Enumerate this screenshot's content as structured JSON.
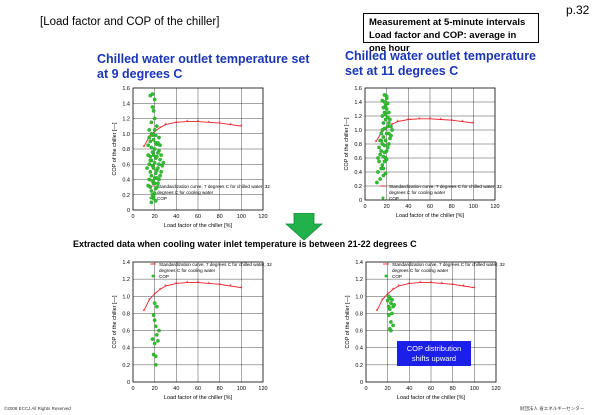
{
  "page_number": "p.32",
  "title": "[Load factor and COP of the chiller]",
  "note_lines": [
    "Measurement at 5-minute intervals",
    "Load factor and COP: average in one hour"
  ],
  "extract_heading": "Extracted data when cooling water inlet temperature is between 21-22 degrees C",
  "callout_lines": [
    "COP distribution",
    "shifts upward"
  ],
  "footer": {
    "copyright": "©2008  ECCJ All Rights Reserved",
    "org": "財団法人 省エネルギーセンター"
  },
  "colors": {
    "heading": "#1a36b8",
    "curve": "#e8202a",
    "points": "#2fbf2f",
    "arrow": "#22b24c",
    "callout": "#1b1fe8"
  },
  "chart_data": [
    {
      "type": "scatter",
      "panel": "top-left",
      "heading": [
        "Chilled water outlet temperature set",
        "at 9 degrees C"
      ],
      "xlabel": "Load factor of the chiller [%]",
      "ylabel": "COP of the chiller [—]",
      "xlim": [
        0,
        120
      ],
      "ylim": [
        0,
        1.6
      ],
      "xticks": [
        0,
        20,
        40,
        60,
        80,
        100,
        120
      ],
      "yticks": [
        0,
        0.2,
        0.4,
        0.6,
        0.8,
        1.0,
        1.2,
        1.4,
        1.6
      ],
      "grid": true,
      "legend": {
        "position": "inside-right",
        "entries": [
          "Standardization curve, 7 degrees C for chilled water, 32",
          "degrees C for cooling water",
          "COP"
        ]
      },
      "series": [
        {
          "name": "Standardization curve, 7 degrees C for chilled water, 32 degrees C for cooling water",
          "x": [
            10,
            15,
            20,
            25,
            30,
            40,
            50,
            60,
            70,
            80,
            90,
            100
          ],
          "y": [
            0.83,
            0.96,
            1.03,
            1.08,
            1.12,
            1.15,
            1.16,
            1.16,
            1.15,
            1.14,
            1.12,
            1.1
          ]
        },
        {
          "name": "COP",
          "x": [
            13,
            14,
            14,
            15,
            15,
            15,
            16,
            16,
            16,
            16,
            17,
            17,
            17,
            17,
            17,
            18,
            18,
            18,
            18,
            18,
            19,
            19,
            19,
            19,
            19,
            20,
            20,
            20,
            20,
            20,
            21,
            21,
            21,
            21,
            22,
            22,
            22,
            22,
            23,
            23,
            23,
            24,
            24,
            24,
            25,
            25,
            26,
            26,
            27,
            28,
            16,
            18,
            20,
            22,
            24,
            15,
            17,
            19,
            21,
            23,
            14,
            18,
            20,
            25,
            17,
            19,
            21,
            16,
            22,
            20
          ],
          "y": [
            0.55,
            0.72,
            0.85,
            0.4,
            0.6,
            0.95,
            0.3,
            0.5,
            0.7,
            0.9,
            0.25,
            0.45,
            0.65,
            0.82,
            1.0,
            0.2,
            0.38,
            0.58,
            0.76,
            0.98,
            0.18,
            0.35,
            0.55,
            0.72,
            0.92,
            0.22,
            0.42,
            0.62,
            0.8,
            1.05,
            0.28,
            0.48,
            0.68,
            0.88,
            0.3,
            0.52,
            0.7,
            0.86,
            0.35,
            0.55,
            0.75,
            0.4,
            0.6,
            0.78,
            0.45,
            0.66,
            0.5,
            0.72,
            0.58,
            0.62,
            1.5,
            1.35,
            1.2,
            1.1,
            0.95,
            1.05,
            1.15,
            1.3,
            0.98,
            0.88,
            0.32,
            1.52,
            1.45,
            0.85,
            0.1,
            0.15,
            0.12,
            0.65,
            0.42,
            0.35
          ]
        }
      ]
    },
    {
      "type": "scatter",
      "panel": "top-right",
      "heading": [
        "Chilled water outlet temperature",
        "set at 11 degrees C"
      ],
      "xlabel": "Load factor of the chiller [%]",
      "ylabel": "COP of the chiller [—]",
      "xlim": [
        0,
        120
      ],
      "ylim": [
        0,
        1.6
      ],
      "xticks": [
        0,
        20,
        40,
        60,
        80,
        100,
        120
      ],
      "yticks": [
        0,
        0.2,
        0.4,
        0.6,
        0.8,
        1.0,
        1.2,
        1.4,
        1.6
      ],
      "grid": true,
      "legend": {
        "position": "inside-right",
        "entries": [
          "Standardization curve, 7 degrees C for chilled water, 32",
          "degrees C for cooling water",
          "COP"
        ]
      },
      "series": [
        {
          "name": "Standardization curve, 7 degrees C for chilled water, 32 degrees C for cooling water",
          "x": [
            10,
            15,
            20,
            25,
            30,
            40,
            50,
            60,
            70,
            80,
            90,
            100
          ],
          "y": [
            0.83,
            0.96,
            1.03,
            1.08,
            1.12,
            1.15,
            1.16,
            1.16,
            1.15,
            1.14,
            1.12,
            1.1
          ]
        },
        {
          "name": "COP",
          "x": [
            11,
            12,
            12,
            13,
            13,
            14,
            14,
            14,
            15,
            15,
            15,
            16,
            16,
            16,
            16,
            17,
            17,
            17,
            17,
            18,
            18,
            18,
            18,
            18,
            19,
            19,
            19,
            19,
            20,
            20,
            20,
            20,
            21,
            21,
            21,
            22,
            22,
            22,
            23,
            23,
            24,
            24,
            25,
            16,
            18,
            20,
            17,
            19,
            21,
            15,
            18,
            20,
            22,
            17,
            19
          ],
          "y": [
            0.25,
            0.4,
            0.6,
            0.55,
            0.75,
            0.3,
            0.65,
            0.85,
            0.45,
            0.7,
            0.95,
            0.5,
            0.8,
            1.0,
            1.2,
            0.35,
            0.62,
            0.9,
            1.1,
            0.55,
            0.78,
            1.02,
            1.25,
            1.4,
            0.6,
            0.85,
            1.15,
            1.35,
            0.7,
            0.95,
            1.3,
            1.45,
            0.75,
            1.05,
            1.38,
            0.8,
            1.1,
            1.25,
            0.88,
            1.15,
            0.92,
            1.05,
            1.0,
            1.42,
            1.5,
            1.48,
            1.32,
            1.22,
            1.18,
            0.85,
            0.68,
            0.58,
            0.95,
            0.45,
            0.38
          ]
        }
      ]
    },
    {
      "type": "scatter",
      "panel": "bottom-left",
      "xlabel": "Load factor of the chiller [%]",
      "ylabel": "COP of the chiller [—]",
      "xlim": [
        0,
        120
      ],
      "ylim": [
        0,
        1.4
      ],
      "xticks": [
        0,
        20,
        40,
        60,
        80,
        100,
        120
      ],
      "yticks": [
        0,
        0.2,
        0.4,
        0.6,
        0.8,
        1.0,
        1.2,
        1.4
      ],
      "grid": true,
      "legend": {
        "position": "inside-top",
        "entries": [
          "Standardization curve, 7 degrees C for chilled water, 32",
          "degrees C for cooling water",
          "COP"
        ]
      },
      "series": [
        {
          "name": "Standardization curve, 7 degrees C for chilled water, 32 degrees C for cooling water",
          "x": [
            10,
            15,
            20,
            25,
            30,
            40,
            50,
            60,
            70,
            80,
            90,
            100
          ],
          "y": [
            0.83,
            0.96,
            1.03,
            1.08,
            1.12,
            1.15,
            1.16,
            1.16,
            1.15,
            1.14,
            1.12,
            1.1
          ]
        },
        {
          "name": "COP",
          "x": [
            18,
            19,
            19,
            20,
            20,
            21,
            21,
            22,
            22,
            23,
            24,
            20,
            21
          ],
          "y": [
            0.5,
            0.32,
            0.78,
            0.45,
            0.92,
            0.3,
            0.65,
            0.55,
            0.88,
            0.48,
            0.6,
            0.72,
            0.2
          ]
        }
      ]
    },
    {
      "type": "scatter",
      "panel": "bottom-right",
      "xlabel": "Load factor of the chiller [%]",
      "ylabel": "COP of the chiller [—]",
      "xlim": [
        0,
        120
      ],
      "ylim": [
        0,
        1.4
      ],
      "xticks": [
        0,
        20,
        40,
        60,
        80,
        100,
        120
      ],
      "yticks": [
        0,
        0.2,
        0.4,
        0.6,
        0.8,
        1.0,
        1.2,
        1.4
      ],
      "grid": true,
      "legend": {
        "position": "inside-top",
        "entries": [
          "Standardization curve, 7 degrees C for chilled water, 32",
          "degrees C for cooling water",
          "COP"
        ]
      },
      "series": [
        {
          "name": "Standardization curve, 7 degrees C for chilled water, 32 degrees C for cooling water",
          "x": [
            10,
            15,
            20,
            25,
            30,
            40,
            50,
            60,
            70,
            80,
            90,
            100
          ],
          "y": [
            0.83,
            0.96,
            1.03,
            1.08,
            1.12,
            1.15,
            1.16,
            1.16,
            1.15,
            1.14,
            1.12,
            1.1
          ]
        },
        {
          "name": "COP",
          "x": [
            20,
            21,
            21,
            22,
            22,
            22,
            23,
            23,
            24,
            24,
            25,
            25,
            26,
            21,
            23
          ],
          "y": [
            0.95,
            0.88,
            0.78,
            0.98,
            0.85,
            0.62,
            0.92,
            0.7,
            0.96,
            0.8,
            0.88,
            0.66,
            0.9,
            1.0,
            0.6
          ]
        }
      ]
    }
  ]
}
